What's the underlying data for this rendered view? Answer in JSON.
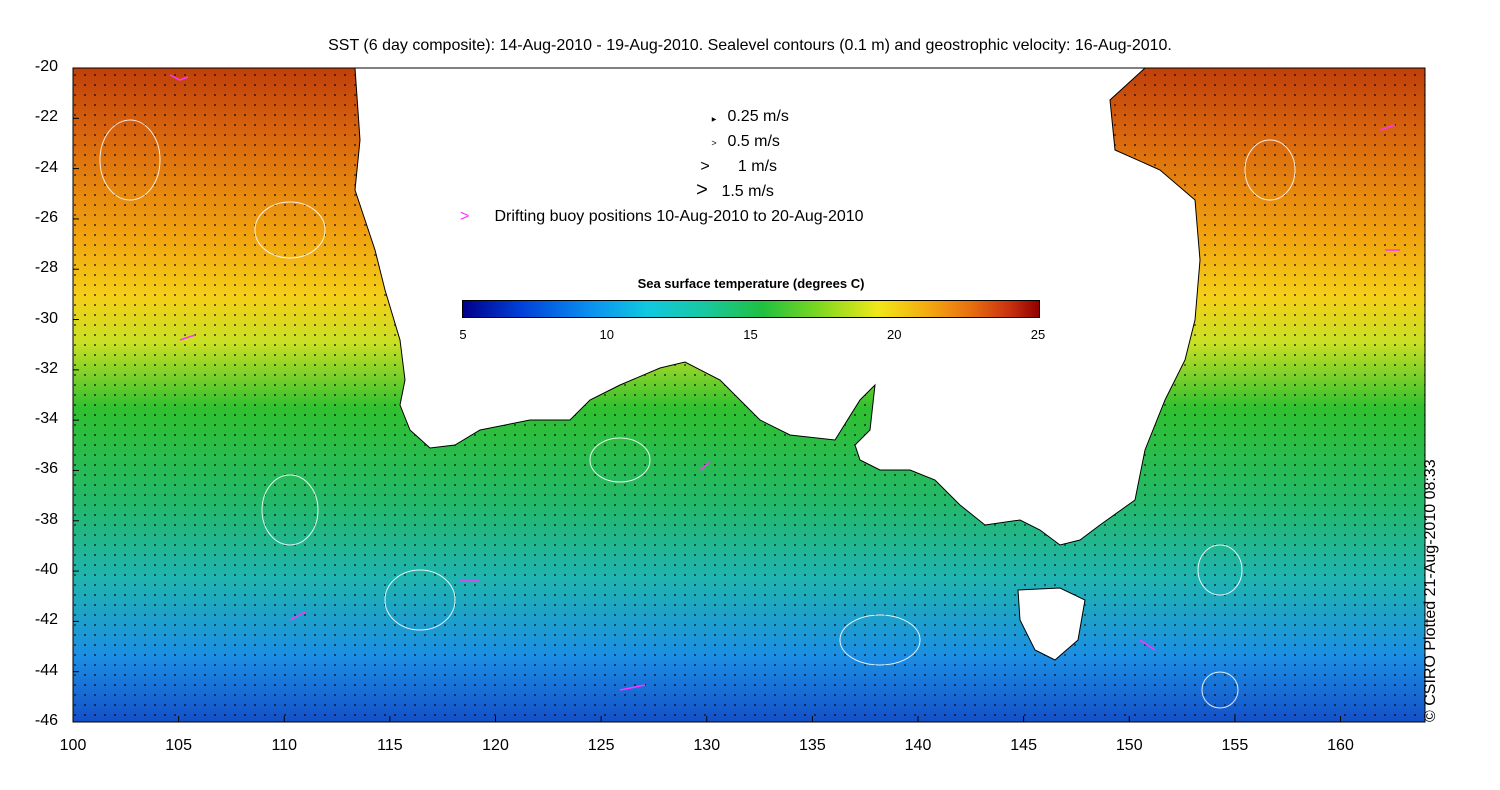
{
  "title": "SST (6 day composite): 14-Aug-2010 - 19-Aug-2010. Sealevel contours (0.1 m) and geostrophic velocity: 16-Aug-2010.",
  "map": {
    "x_axis": {
      "ticks": [
        100,
        105,
        110,
        115,
        120,
        125,
        130,
        135,
        140,
        145,
        150,
        155,
        160
      ],
      "range": [
        100,
        164
      ]
    },
    "y_axis": {
      "ticks": [
        -20,
        -22,
        -24,
        -26,
        -28,
        -30,
        -32,
        -34,
        -36,
        -38,
        -40,
        -42,
        -44,
        -46
      ],
      "range": [
        -46,
        -20
      ]
    }
  },
  "legend": {
    "velocity_scale": [
      {
        "label": "0.25 m/s"
      },
      {
        "label": "0.5 m/s"
      },
      {
        "label": "1 m/s"
      },
      {
        "label": "1.5 m/s"
      }
    ],
    "buoy_label": "Drifting buoy positions 10-Aug-2010 to 20-Aug-2010",
    "buoy_color": "#ff33ff"
  },
  "colorbar": {
    "title": "Sea surface temperature (degrees C)",
    "ticks": [
      5,
      10,
      15,
      20,
      25
    ],
    "range": [
      5,
      25
    ]
  },
  "credit": "© CSIRO Plotted 21-Aug-2010 08:33"
}
